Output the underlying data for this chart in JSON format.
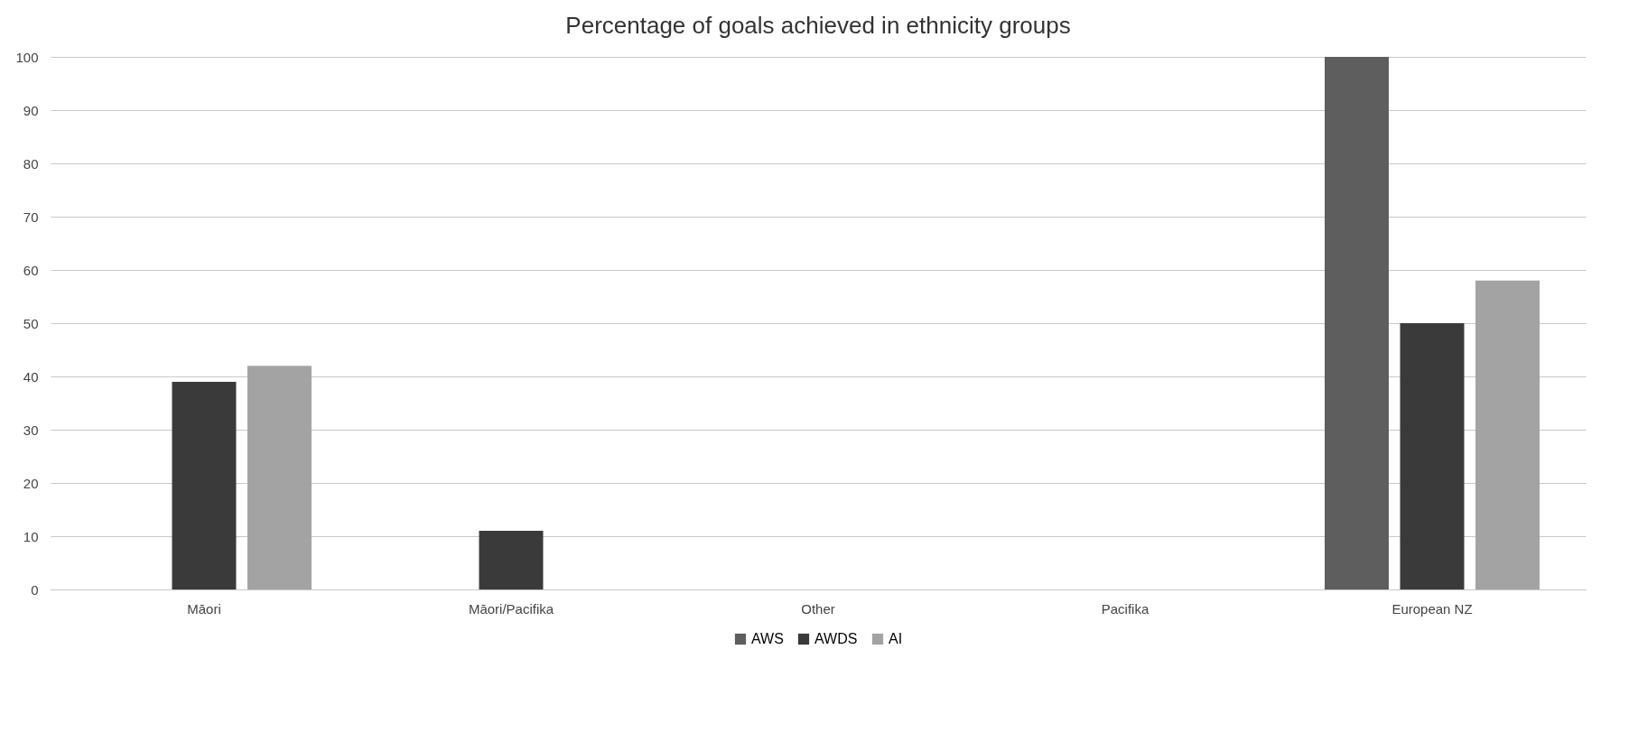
{
  "chart_data": {
    "type": "bar",
    "title": "Percentage of goals achieved in ethnicity groups",
    "categories": [
      "Māori",
      "Māori/Pacifika",
      "Other",
      "Pacifika",
      "European NZ"
    ],
    "series": [
      {
        "name": "AWS",
        "color": "#5e5e5e",
        "values": [
          null,
          null,
          null,
          null,
          100
        ]
      },
      {
        "name": "AWDS",
        "color": "#3a3a3a",
        "values": [
          39,
          11,
          null,
          null,
          50
        ]
      },
      {
        "name": "AI",
        "color": "#a3a3a3",
        "values": [
          42,
          null,
          null,
          null,
          58
        ]
      }
    ],
    "ylim": [
      0,
      100
    ],
    "yticks": [
      0,
      10,
      20,
      30,
      40,
      50,
      60,
      70,
      80,
      90,
      100
    ],
    "grid": "y",
    "legend": "bottom"
  }
}
